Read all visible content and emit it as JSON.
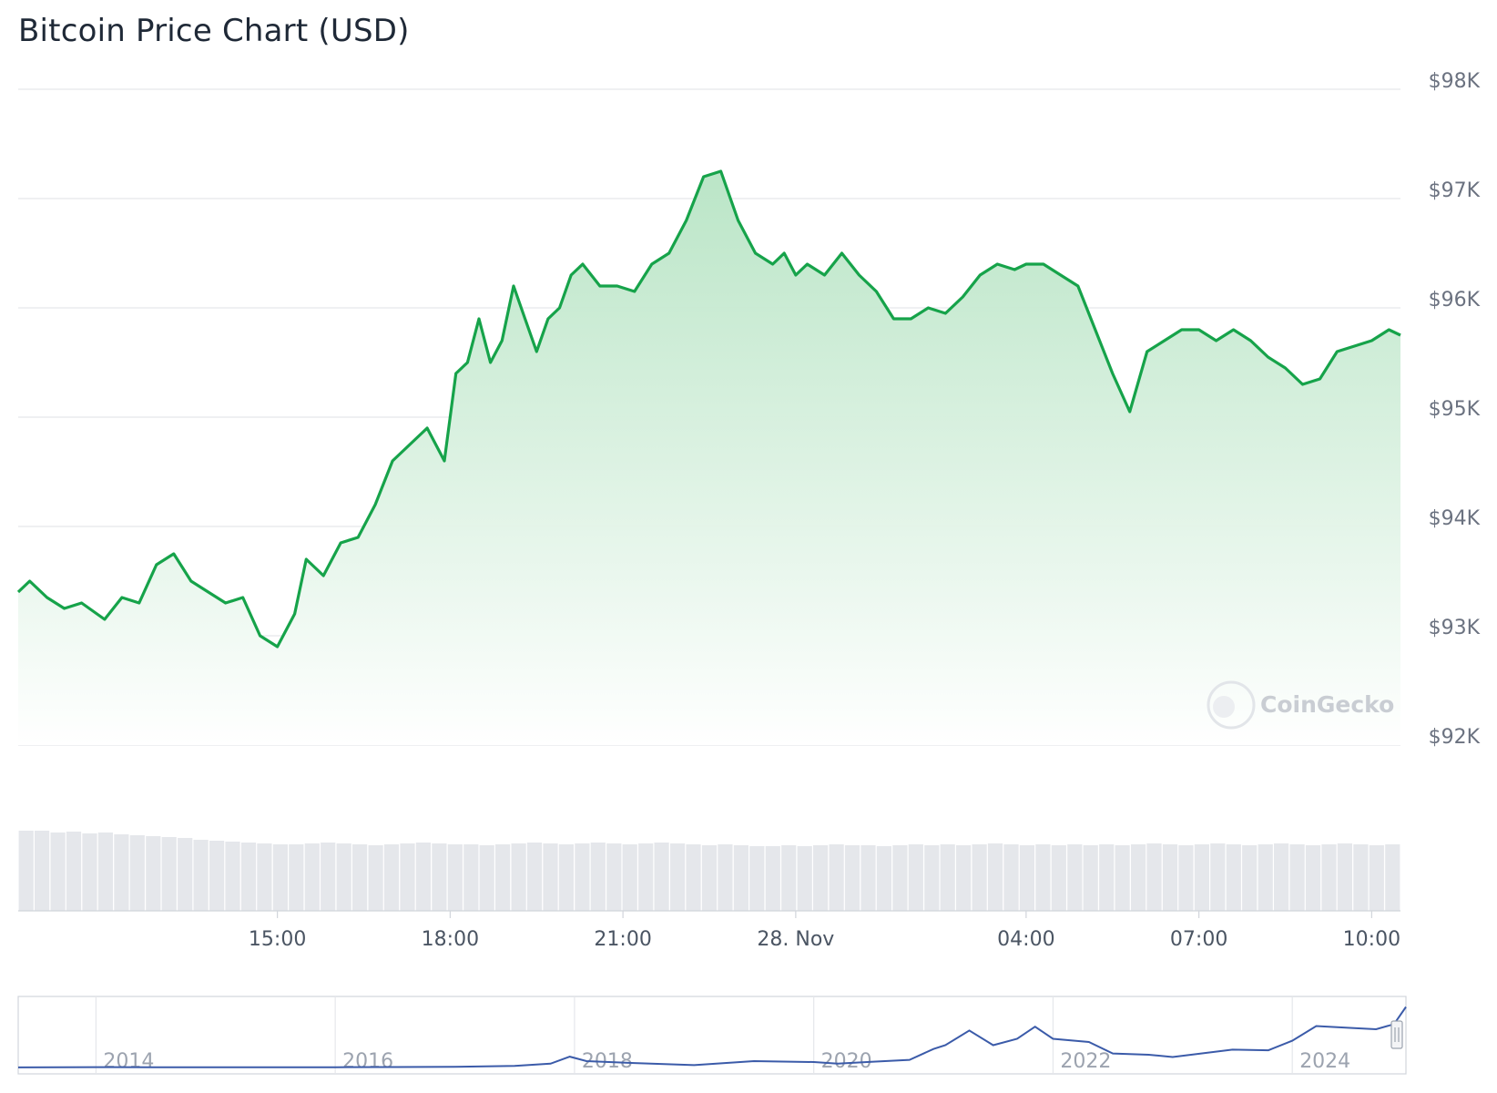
{
  "title": "Bitcoin Price Chart (USD)",
  "watermark": "CoinGecko",
  "colors": {
    "line": "#16a34a",
    "area_top": "#b7e4c4",
    "grid": "#e5e7eb",
    "volume": "#e5e7eb",
    "navigator": "#3b5ba9"
  },
  "chart_data": {
    "type": "area",
    "title": "Bitcoin Price Chart (USD)",
    "xlabel": "",
    "ylabel": "",
    "grid": true,
    "legend": "none",
    "y_ticks": [
      "$98K",
      "$97K",
      "$96K",
      "$95K",
      "$94K",
      "$93K",
      "$92K"
    ],
    "y_tick_values": [
      98000,
      97000,
      96000,
      95000,
      94000,
      93000,
      92000
    ],
    "ylim": [
      92000,
      98000
    ],
    "x_ticks": [
      "15:00",
      "18:00",
      "21:00",
      "28. Nov",
      "04:00",
      "07:00",
      "10:00"
    ],
    "x_tick_hours": [
      15,
      18,
      21,
      24,
      28,
      31,
      34
    ],
    "xlim_hours": [
      10.5,
      34.5
    ],
    "series": [
      {
        "x_hours": [
          10.5,
          10.7,
          11.0,
          11.3,
          11.6,
          12.0,
          12.3,
          12.6,
          12.9,
          13.2,
          13.5,
          13.8,
          14.1,
          14.4,
          14.7,
          15.0,
          15.3,
          15.5,
          15.8,
          16.1,
          16.4,
          16.7,
          17.0,
          17.3,
          17.6,
          17.9,
          18.1,
          18.3,
          18.5,
          18.7,
          18.9,
          19.1,
          19.3,
          19.5,
          19.7,
          19.9,
          20.1,
          20.3,
          20.6,
          20.9,
          21.2,
          21.5,
          21.8,
          22.1,
          22.4,
          22.7,
          23.0,
          23.3,
          23.6,
          23.8,
          24.0,
          24.2,
          24.5,
          24.8,
          25.1,
          25.4,
          25.7,
          26.0,
          26.3,
          26.6,
          26.9,
          27.2,
          27.5,
          27.8,
          28.0,
          28.3,
          28.6,
          28.9,
          29.2,
          29.5,
          29.8,
          30.1,
          30.4,
          30.7,
          31.0,
          31.3,
          31.6,
          31.9,
          32.2,
          32.5,
          32.8,
          33.1,
          33.4,
          33.7,
          34.0,
          34.3,
          34.5
        ],
        "values": [
          93400,
          93500,
          93350,
          93250,
          93300,
          93150,
          93350,
          93300,
          93650,
          93750,
          93500,
          93400,
          93300,
          93350,
          93000,
          92900,
          93200,
          93700,
          93550,
          93850,
          93900,
          94200,
          94600,
          94750,
          94900,
          94600,
          95400,
          95500,
          95900,
          95500,
          95700,
          96200,
          95900,
          95600,
          95900,
          96000,
          96300,
          96400,
          96200,
          96200,
          96150,
          96400,
          96500,
          96800,
          97200,
          97250,
          96800,
          96500,
          96400,
          96500,
          96300,
          96400,
          96300,
          96500,
          96300,
          96150,
          95900,
          95900,
          96000,
          95950,
          96100,
          96300,
          96400,
          96350,
          96400,
          96400,
          96300,
          96200,
          95800,
          95400,
          95050,
          95600,
          95700,
          95800,
          95800,
          95700,
          95800,
          95700,
          95550,
          95450,
          95300,
          95350,
          95600,
          95650,
          95700,
          95800,
          95750
        ]
      }
    ],
    "volume_series": {
      "values": [
        88,
        88,
        86,
        87,
        85,
        86,
        84,
        83,
        82,
        81,
        80,
        78,
        77,
        76,
        75,
        74,
        73,
        73,
        74,
        75,
        74,
        73,
        72,
        73,
        74,
        75,
        74,
        73,
        73,
        72,
        73,
        74,
        75,
        74,
        73,
        74,
        75,
        74,
        73,
        74,
        75,
        74,
        73,
        72,
        73,
        72,
        71,
        71,
        72,
        71,
        72,
        73,
        72,
        72,
        71,
        72,
        73,
        72,
        73,
        72,
        73,
        74,
        73,
        72,
        73,
        72,
        73,
        72,
        73,
        72,
        73,
        74,
        73,
        72,
        73,
        74,
        73,
        72,
        73,
        74,
        73,
        72,
        73,
        74,
        73,
        72,
        73
      ]
    },
    "navigator": {
      "x_ticks": [
        "2014",
        "2016",
        "2018",
        "2020",
        "2022",
        "2024"
      ],
      "x_tick_years": [
        2014,
        2016,
        2018,
        2020,
        2022,
        2024
      ],
      "xlim_years": [
        2013.35,
        2024.95
      ],
      "years": [
        2013.35,
        2014.0,
        2014.5,
        2015.0,
        2015.5,
        2016.0,
        2016.5,
        2017.0,
        2017.5,
        2017.8,
        2017.96,
        2018.1,
        2018.5,
        2019.0,
        2019.5,
        2020.0,
        2020.2,
        2020.5,
        2020.8,
        2021.0,
        2021.1,
        2021.3,
        2021.5,
        2021.7,
        2021.85,
        2022.0,
        2022.3,
        2022.5,
        2022.8,
        2023.0,
        2023.5,
        2023.8,
        2024.0,
        2024.2,
        2024.5,
        2024.7,
        2024.85,
        2024.95
      ],
      "prices": [
        100,
        600,
        500,
        300,
        250,
        400,
        650,
        1000,
        2500,
        6000,
        17000,
        10000,
        7000,
        3700,
        10000,
        8500,
        6000,
        9200,
        12000,
        29000,
        35000,
        58000,
        35000,
        45000,
        64000,
        45000,
        40000,
        22000,
        20000,
        16500,
        28000,
        27000,
        42000,
        65000,
        62000,
        60000,
        68000,
        95000
      ]
    }
  }
}
